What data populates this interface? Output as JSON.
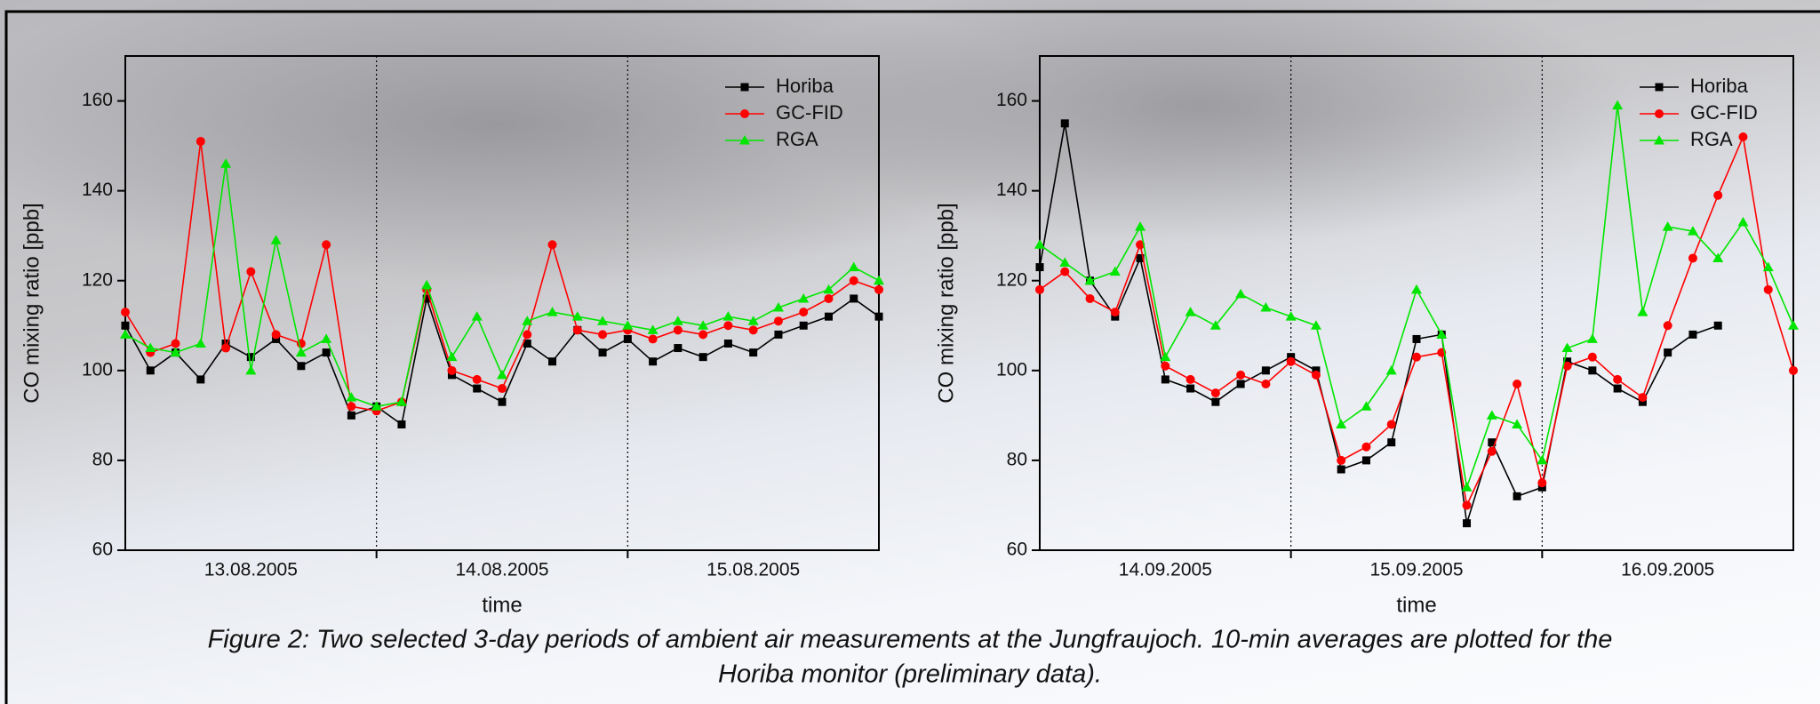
{
  "chart_data": [
    {
      "type": "line",
      "y_label": "CO mixing ratio [ppb]",
      "x_label": "time",
      "xlim": [
        0,
        3
      ],
      "xticks": [
        {
          "value": 0.5,
          "label": "13.08.2005"
        },
        {
          "value": 1.5,
          "label": "14.08.2005"
        },
        {
          "value": 2.5,
          "label": "15.08.2005"
        }
      ],
      "day_lines": [
        1,
        2
      ],
      "ylim": [
        60,
        170
      ],
      "yticks": [
        60,
        80,
        100,
        120,
        140,
        160
      ],
      "legend": "top-right",
      "x": [
        0,
        0.1,
        0.2,
        0.3,
        0.4,
        0.5,
        0.6,
        0.7,
        0.8,
        0.9,
        1.0,
        1.1,
        1.2,
        1.3,
        1.4,
        1.5,
        1.6,
        1.7,
        1.8,
        1.9,
        2.0,
        2.1,
        2.2,
        2.3,
        2.4,
        2.5,
        2.6,
        2.7,
        2.8,
        2.9,
        3.0
      ],
      "series": [
        {
          "name": "Horiba",
          "color": "#000000",
          "marker": "square",
          "values": [
            110,
            100,
            104,
            98,
            106,
            103,
            107,
            101,
            104,
            90,
            92,
            88,
            116,
            99,
            96,
            93,
            106,
            102,
            109,
            104,
            107,
            102,
            105,
            103,
            106,
            104,
            108,
            110,
            112,
            116,
            112
          ]
        },
        {
          "name": "GC-FID",
          "color": "#ff0000",
          "marker": "circle",
          "values": [
            113,
            104,
            106,
            151,
            105,
            122,
            108,
            106,
            128,
            92,
            91,
            93,
            118,
            100,
            98,
            96,
            108,
            128,
            109,
            108,
            109,
            107,
            109,
            108,
            110,
            109,
            111,
            113,
            116,
            120,
            118
          ]
        },
        {
          "name": "RGA",
          "color": "#00e600",
          "marker": "triangle",
          "values": [
            108,
            105,
            104,
            106,
            146,
            100,
            129,
            104,
            107,
            94,
            92,
            93,
            119,
            103,
            112,
            99,
            111,
            113,
            112,
            111,
            110,
            109,
            111,
            110,
            112,
            111,
            114,
            116,
            118,
            123,
            120
          ]
        }
      ]
    },
    {
      "type": "line",
      "y_label": "CO mixing ratio [ppb]",
      "x_label": "time",
      "xlim": [
        0,
        3
      ],
      "xticks": [
        {
          "value": 0.5,
          "label": "14.09.2005"
        },
        {
          "value": 1.5,
          "label": "15.09.2005"
        },
        {
          "value": 2.5,
          "label": "16.09.2005"
        }
      ],
      "day_lines": [
        1,
        2
      ],
      "ylim": [
        60,
        170
      ],
      "yticks": [
        60,
        80,
        100,
        120,
        140,
        160
      ],
      "legend": "top-right",
      "x": [
        0,
        0.1,
        0.2,
        0.3,
        0.4,
        0.5,
        0.6,
        0.7,
        0.8,
        0.9,
        1.0,
        1.1,
        1.2,
        1.3,
        1.4,
        1.5,
        1.6,
        1.7,
        1.8,
        1.9,
        2.0,
        2.1,
        2.2,
        2.3,
        2.4,
        2.5,
        2.6,
        2.7,
        2.8,
        2.9,
        3.0
      ],
      "series": [
        {
          "name": "Horiba",
          "color": "#000000",
          "marker": "square",
          "values": [
            123,
            155,
            120,
            112,
            125,
            98,
            96,
            93,
            97,
            100,
            103,
            100,
            78,
            80,
            84,
            107,
            108,
            66,
            84,
            72,
            74,
            102,
            100,
            96,
            93,
            104,
            108,
            110,
            null,
            null,
            null
          ]
        },
        {
          "name": "GC-FID",
          "color": "#ff0000",
          "marker": "circle",
          "values": [
            118,
            122,
            116,
            113,
            128,
            101,
            98,
            95,
            99,
            97,
            102,
            99,
            80,
            83,
            88,
            103,
            104,
            70,
            82,
            97,
            75,
            101,
            103,
            98,
            94,
            110,
            125,
            139,
            152,
            118,
            100
          ]
        },
        {
          "name": "RGA",
          "color": "#00e600",
          "marker": "triangle",
          "values": [
            128,
            124,
            120,
            122,
            132,
            103,
            113,
            110,
            117,
            114,
            112,
            110,
            88,
            92,
            100,
            118,
            108,
            74,
            90,
            88,
            80,
            105,
            107,
            159,
            113,
            132,
            131,
            125,
            133,
            123,
            110
          ]
        }
      ]
    }
  ],
  "caption": [
    "Figure 2: Two selected 3-day periods of ambient air measurements at the Jungfraujoch. 10-min averages are plotted for the",
    "Horiba monitor (preliminary data)."
  ]
}
